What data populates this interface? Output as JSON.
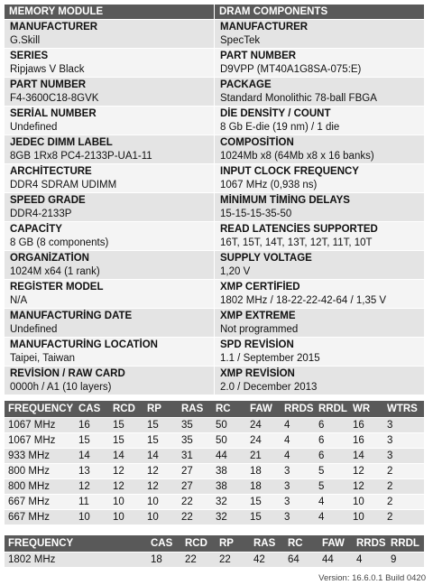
{
  "headers": {
    "left": "MEMORY MODULE",
    "right": "DRAM COMPONENTS"
  },
  "module_rows": [
    {
      "label": "MANUFACTURER",
      "value": "G.Skill"
    },
    {
      "label": "SERIES",
      "value": "Ripjaws V Black"
    },
    {
      "label": "PART NUMBER",
      "value": "F4-3600C18-8GVK"
    },
    {
      "label": "SERİAL NUMBER",
      "value": "Undefined"
    },
    {
      "label": "JEDEC DIMM LABEL",
      "value": "8GB 1Rx8 PC4-2133P-UA1-11"
    },
    {
      "label": "ARCHİTECTURE",
      "value": "DDR4 SDRAM UDIMM"
    },
    {
      "label": "SPEED GRADE",
      "value": "DDR4-2133P"
    },
    {
      "label": "CAPACİTY",
      "value": "8 GB (8 components)"
    },
    {
      "label": "ORGANİZATİON",
      "value": "1024M x64 (1 rank)"
    },
    {
      "label": "REGİSTER MODEL",
      "value": "N/A"
    },
    {
      "label": "MANUFACTURİNG DATE",
      "value": "Undefined"
    },
    {
      "label": "MANUFACTURİNG LOCATİON",
      "value": "Taipei, Taiwan"
    },
    {
      "label": "REVİSİON / RAW CARD",
      "value": "0000h / A1 (10 layers)"
    }
  ],
  "dram_rows": [
    {
      "label": "MANUFACTURER",
      "value": "SpecTek"
    },
    {
      "label": "PART NUMBER",
      "value": "D9VPP (MT40A1G8SA-075:E)"
    },
    {
      "label": "PACKAGE",
      "value": "Standard Monolithic 78-ball FBGA"
    },
    {
      "label": "DİE DENSİTY / COUNT",
      "value": "8 Gb E-die (19 nm) / 1 die"
    },
    {
      "label": "COMPOSİTİON",
      "value": "1024Mb x8 (64Mb x8 x 16 banks)"
    },
    {
      "label": "INPUT CLOCK FREQUENCY",
      "value": "1067 MHz (0,938 ns)"
    },
    {
      "label": "MİNİMUM TİMİNG DELAYS",
      "value": "15-15-15-35-50"
    },
    {
      "label": "READ LATENCİES SUPPORTED",
      "value": "16T, 15T, 14T, 13T, 12T, 11T, 10T"
    },
    {
      "label": "SUPPLY VOLTAGE",
      "value": "1,20 V"
    },
    {
      "label": "XMP CERTİFİED",
      "value": "1802 MHz / 18-22-22-42-64 / 1,35 V"
    },
    {
      "label": "XMP EXTREME",
      "value": "Not programmed"
    },
    {
      "label": "SPD REVİSİON",
      "value": "1.1 / September 2015"
    },
    {
      "label": "XMP REVİSİON",
      "value": "2.0 / December 2013"
    }
  ],
  "timing_table": {
    "columns": [
      "FREQUENCY",
      "CAS",
      "RCD",
      "RP",
      "RAS",
      "RC",
      "FAW",
      "RRDS",
      "RRDL",
      "WR",
      "WTRS"
    ],
    "rows": [
      [
        "1067 MHz",
        "16",
        "15",
        "15",
        "35",
        "50",
        "24",
        "4",
        "6",
        "16",
        "3"
      ],
      [
        "1067 MHz",
        "15",
        "15",
        "15",
        "35",
        "50",
        "24",
        "4",
        "6",
        "16",
        "3"
      ],
      [
        "933 MHz",
        "14",
        "14",
        "14",
        "31",
        "44",
        "21",
        "4",
        "6",
        "14",
        "3"
      ],
      [
        "800 MHz",
        "13",
        "12",
        "12",
        "27",
        "38",
        "18",
        "3",
        "5",
        "12",
        "2"
      ],
      [
        "800 MHz",
        "12",
        "12",
        "12",
        "27",
        "38",
        "18",
        "3",
        "5",
        "12",
        "2"
      ],
      [
        "667 MHz",
        "11",
        "10",
        "10",
        "22",
        "32",
        "15",
        "3",
        "4",
        "10",
        "2"
      ],
      [
        "667 MHz",
        "10",
        "10",
        "10",
        "22",
        "32",
        "15",
        "3",
        "4",
        "10",
        "2"
      ]
    ]
  },
  "xmp_table": {
    "columns": [
      "FREQUENCY",
      "CAS",
      "RCD",
      "RP",
      "RAS",
      "RC",
      "FAW",
      "RRDS",
      "RRDL"
    ],
    "rows": [
      [
        "1802 MHz",
        "18",
        "22",
        "22",
        "42",
        "64",
        "44",
        "4",
        "9"
      ]
    ]
  },
  "version": "Version: 16.6.0.1 Build 0420"
}
